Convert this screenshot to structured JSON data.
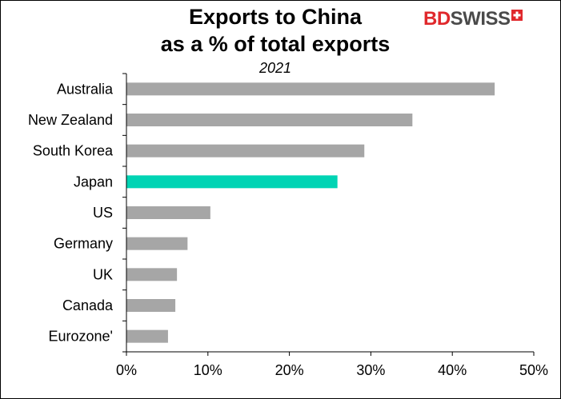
{
  "chart_data": {
    "type": "bar",
    "orientation": "horizontal",
    "title_line1": "Exports to China",
    "title_line2": "as a % of total exports",
    "subtitle": "2021",
    "categories": [
      "Australia",
      "New Zealand",
      "South Korea",
      "Japan",
      "US",
      "Germany",
      "UK",
      "Canada",
      "Eurozone'"
    ],
    "values": [
      45.2,
      35.1,
      29.2,
      25.9,
      10.3,
      7.5,
      6.2,
      6.0,
      5.1
    ],
    "highlight": "Japan",
    "xlim": [
      0,
      50
    ],
    "xticks": [
      "0%",
      "10%",
      "20%",
      "30%",
      "40%",
      "50%"
    ],
    "grid": false,
    "colors": {
      "bar": "#a6a6a6",
      "highlight": "#00d4b4"
    }
  },
  "logo": {
    "bd": "BD",
    "swiss": "SWISS"
  }
}
